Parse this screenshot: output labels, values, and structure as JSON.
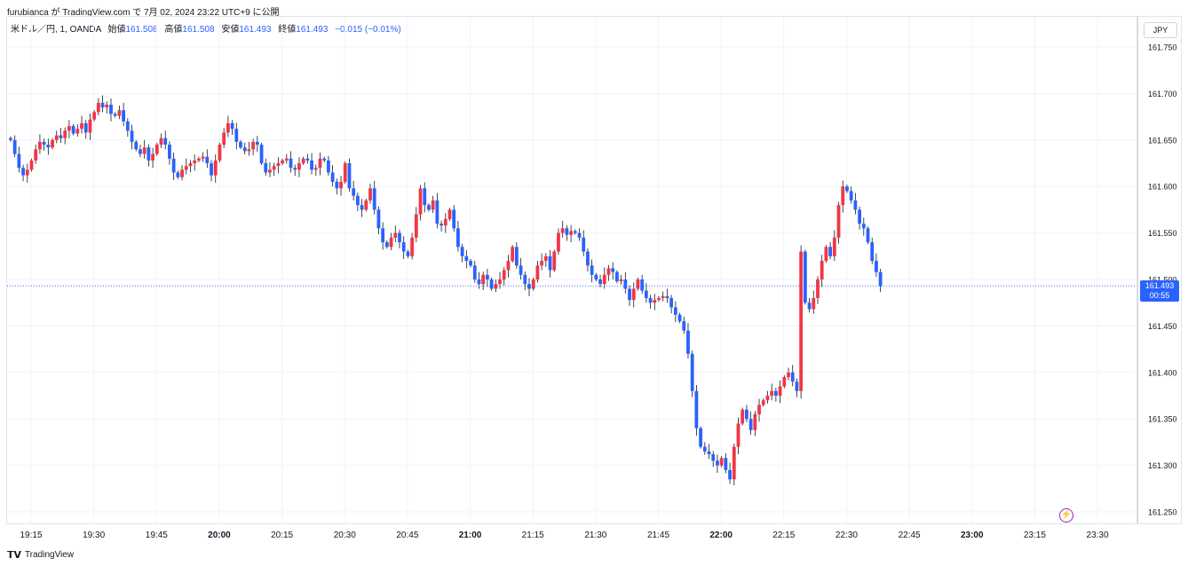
{
  "header": {
    "publish_line": "furubianca が TradingView.com で 7月 02, 2024 23:22 UTC+9 に公開"
  },
  "legend": {
    "symbol": "米ドル／円, 1, OANDA",
    "open_label": "始値",
    "open_value": "161.508",
    "high_label": "高値",
    "high_value": "161.508",
    "low_label": "安値",
    "low_value": "161.493",
    "close_label": "終値",
    "close_value": "161.493",
    "change": "−0.015 (−0.01%)"
  },
  "currency_button": "JPY",
  "last_price": {
    "value": "161.493",
    "countdown": "00:55"
  },
  "footer": {
    "logo_mark": "𝗧𝗩",
    "logo_text": "TradingView"
  },
  "colors": {
    "up": "#f23645",
    "down": "#2962ff",
    "grid": "#f0f3fa",
    "price_line": "#2962ff"
  },
  "chart_data": {
    "type": "candlestick",
    "title": "",
    "xlabel": "",
    "ylabel": "",
    "ylim": [
      161.23,
      161.775
    ],
    "y_ticks": [
      "161.750",
      "161.700",
      "161.650",
      "161.600",
      "161.550",
      "161.500",
      "161.450",
      "161.400",
      "161.350",
      "161.300",
      "161.250"
    ],
    "x_ticks": [
      {
        "label": "19:15",
        "bold": false
      },
      {
        "label": "19:30",
        "bold": false
      },
      {
        "label": "19:45",
        "bold": false
      },
      {
        "label": "20:00",
        "bold": true
      },
      {
        "label": "20:15",
        "bold": false
      },
      {
        "label": "20:30",
        "bold": false
      },
      {
        "label": "20:45",
        "bold": false
      },
      {
        "label": "21:00",
        "bold": true
      },
      {
        "label": "21:15",
        "bold": false
      },
      {
        "label": "21:30",
        "bold": false
      },
      {
        "label": "21:45",
        "bold": false
      },
      {
        "label": "22:00",
        "bold": true
      },
      {
        "label": "22:15",
        "bold": false
      },
      {
        "label": "22:30",
        "bold": false
      },
      {
        "label": "22:45",
        "bold": false
      },
      {
        "label": "23:00",
        "bold": true
      },
      {
        "label": "23:15",
        "bold": false
      },
      {
        "label": "23:30",
        "bold": false
      }
    ],
    "start_time": "19:10",
    "interval_minutes": 1,
    "last_price": 161.493,
    "closes": [
      161.65,
      161.635,
      161.62,
      161.612,
      161.618,
      161.628,
      161.64,
      161.648,
      161.645,
      161.642,
      161.65,
      161.655,
      161.652,
      161.66,
      161.665,
      161.657,
      161.662,
      161.668,
      161.658,
      161.672,
      161.68,
      161.69,
      161.685,
      161.688,
      161.678,
      161.676,
      161.682,
      161.67,
      161.66,
      161.648,
      161.64,
      161.635,
      161.642,
      161.628,
      161.635,
      161.645,
      161.652,
      161.645,
      161.63,
      161.615,
      161.61,
      161.618,
      161.622,
      161.625,
      161.628,
      161.63,
      161.632,
      161.625,
      161.612,
      161.628,
      161.645,
      161.658,
      161.668,
      161.662,
      161.648,
      161.642,
      161.638,
      161.64,
      161.648,
      161.645,
      161.625,
      161.615,
      161.618,
      161.622,
      161.625,
      161.628,
      161.63,
      161.62,
      161.618,
      161.625,
      161.63,
      161.628,
      161.618,
      161.62,
      161.63,
      161.628,
      161.615,
      161.605,
      161.598,
      161.605,
      161.625,
      161.598,
      161.59,
      161.58,
      161.575,
      161.585,
      161.598,
      161.575,
      161.555,
      161.54,
      161.535,
      161.545,
      161.55,
      161.54,
      161.53,
      161.525,
      161.545,
      161.57,
      161.598,
      161.58,
      161.575,
      161.585,
      161.56,
      161.558,
      161.565,
      161.575,
      161.555,
      161.535,
      161.525,
      161.52,
      161.515,
      161.5,
      161.495,
      161.505,
      161.5,
      161.49,
      161.495,
      161.5,
      161.51,
      161.52,
      161.535,
      161.515,
      161.505,
      161.495,
      161.49,
      161.5,
      161.515,
      161.52,
      161.525,
      161.51,
      161.53,
      161.55,
      161.555,
      161.548,
      161.552,
      161.55,
      161.545,
      161.53,
      161.515,
      161.505,
      161.5,
      161.495,
      161.505,
      161.512,
      161.508,
      161.498,
      161.5,
      161.49,
      161.478,
      161.49,
      161.5,
      161.488,
      161.48,
      161.475,
      161.478,
      161.48,
      161.482,
      161.48,
      161.47,
      161.462,
      161.455,
      161.445,
      161.42,
      161.38,
      161.34,
      161.32,
      161.315,
      161.312,
      161.305,
      161.3,
      161.308,
      161.295,
      161.285,
      161.32,
      161.345,
      161.36,
      161.35,
      161.338,
      161.355,
      161.365,
      161.37,
      161.375,
      161.38,
      161.375,
      161.385,
      161.395,
      161.4,
      161.39,
      161.38,
      161.53,
      161.475,
      161.468,
      161.48,
      161.5,
      161.52,
      161.535,
      161.525,
      161.545,
      161.58,
      161.6,
      161.595,
      161.585,
      161.575,
      161.56,
      161.555,
      161.54,
      161.52,
      161.508,
      161.493
    ]
  }
}
